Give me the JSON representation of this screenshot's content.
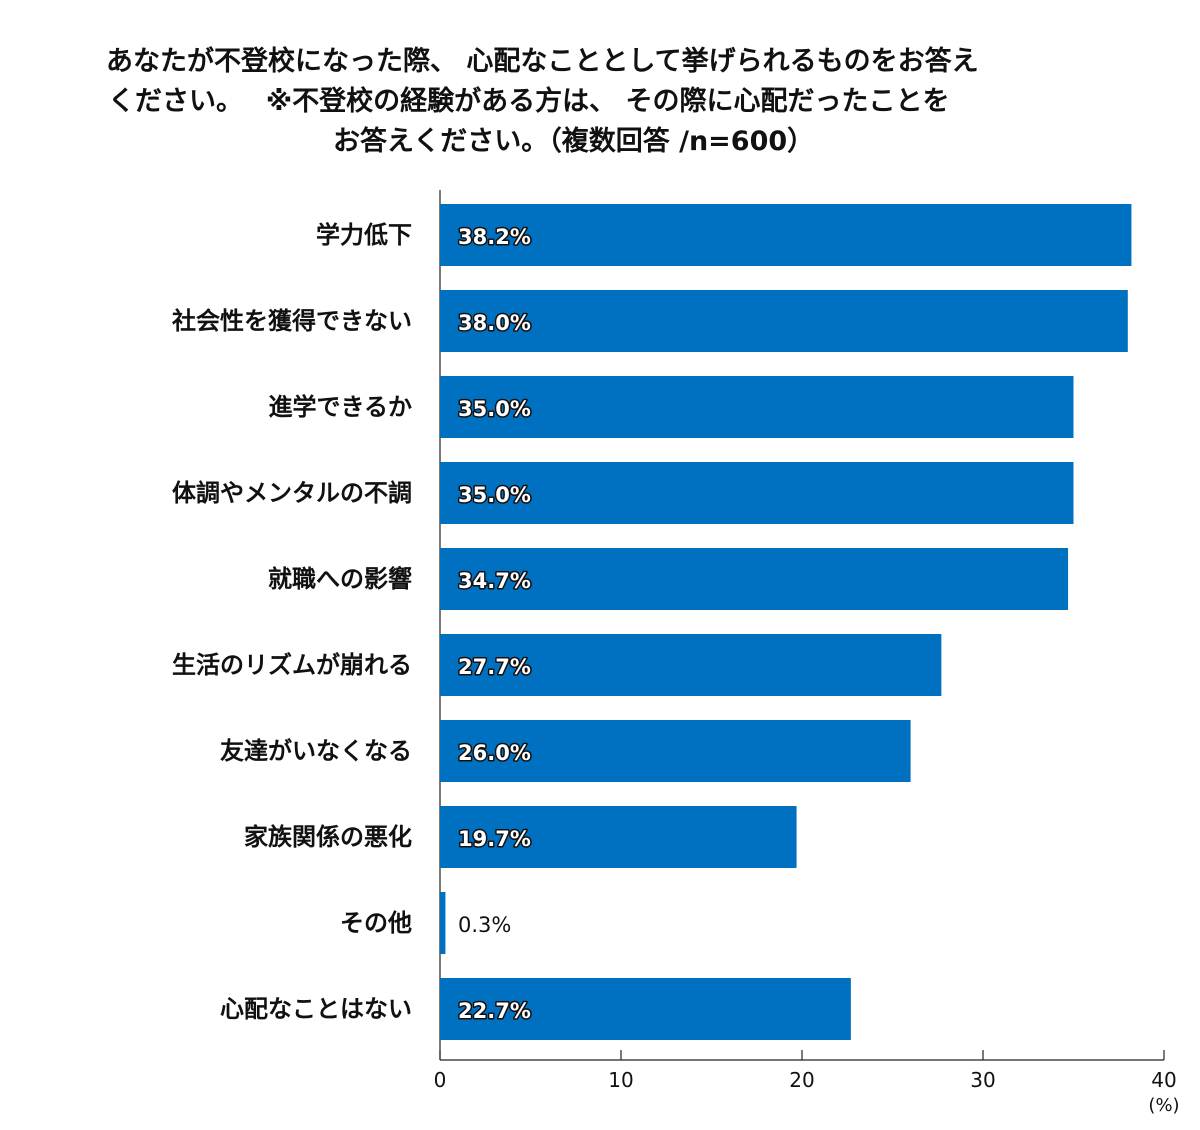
{
  "chart_data": {
    "type": "bar",
    "orientation": "horizontal",
    "title_lines": [
      "あなたが不登校になった際、 心配なこととして挙げられるものをお答え",
      "ください。　 ※不登校の経験がある方は、 その際に心配だったことを",
      "お答えください。（複数回答 /n=600）"
    ],
    "categories": [
      "学力低下",
      "社会性を獲得できない",
      "進学できるか",
      "体調やメンタルの不調",
      "就職への影響",
      "生活のリズムが崩れる",
      "友達がいなくなる",
      "家族関係の悪化",
      "その他",
      "心配なことはない"
    ],
    "values": [
      38.2,
      38.0,
      35.0,
      35.0,
      34.7,
      27.7,
      26.0,
      19.7,
      0.3,
      22.7
    ],
    "value_labels": [
      "38.2%",
      "38.0%",
      "35.0%",
      "35.0%",
      "34.7%",
      "27.7%",
      "26.0%",
      "19.7%",
      "0.3%",
      "22.7%"
    ],
    "x_ticks": [
      "0",
      "10",
      "20",
      "30",
      "40"
    ],
    "x_unit": "(%)",
    "xlim": [
      0,
      40
    ],
    "grid": false,
    "legend": "none",
    "bar_color": "#0070c0"
  }
}
